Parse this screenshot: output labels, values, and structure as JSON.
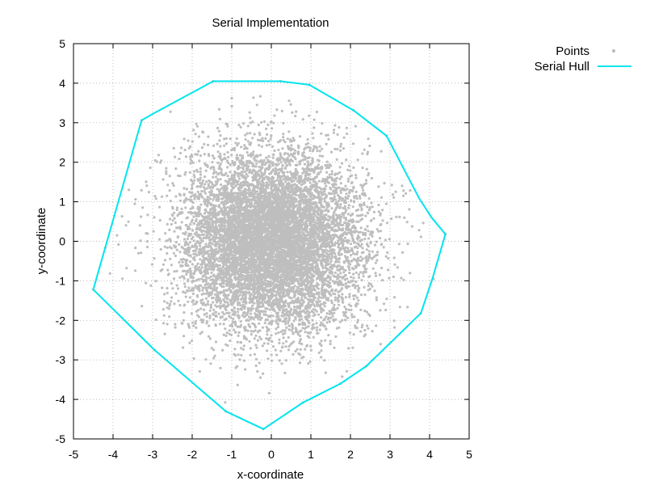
{
  "chart_data": {
    "type": "scatter",
    "title": "Serial Implementation",
    "xlabel": "x-coordinate",
    "ylabel": "y-coordinate",
    "xlim": [
      -5,
      5
    ],
    "ylim": [
      -5,
      5
    ],
    "xticks": [
      -5,
      -4,
      -3,
      -2,
      -1,
      0,
      1,
      2,
      3,
      4,
      5
    ],
    "yticks": [
      -5,
      -4,
      -3,
      -2,
      -1,
      0,
      1,
      2,
      3,
      4,
      5
    ],
    "grid": true,
    "legend_position": "top-right outside",
    "series": [
      {
        "name": "Points",
        "kind": "scatter",
        "color": "#bebebe",
        "distribution": "approximately standard normal in x and y, dense cloud radius about 2.5, outliers up to the hull",
        "samples": [
          [
            -3.28,
            3.06
          ],
          [
            -1.47,
            4.05
          ],
          [
            0.23,
            4.05
          ],
          [
            0.96,
            3.96
          ],
          [
            2.08,
            3.31
          ],
          [
            2.91,
            2.67
          ],
          [
            4.4,
            0.18
          ],
          [
            4.1,
            -0.95
          ],
          [
            3.78,
            -1.82
          ],
          [
            2.4,
            -3.16
          ],
          [
            1.75,
            -3.6
          ],
          [
            0.8,
            -4.08
          ],
          [
            -0.2,
            -4.75
          ],
          [
            -1.15,
            -4.3
          ],
          [
            -2.95,
            -2.75
          ],
          [
            -4.5,
            -1.22
          ],
          [
            -3.9,
            0.15
          ],
          [
            -3.6,
            1.3
          ]
        ]
      },
      {
        "name": "Serial Hull",
        "kind": "line",
        "color": "#00e5ee",
        "points": [
          [
            -3.28,
            3.06
          ],
          [
            -3.0,
            3.22
          ],
          [
            -1.47,
            4.05
          ],
          [
            0.23,
            4.05
          ],
          [
            0.96,
            3.96
          ],
          [
            2.08,
            3.31
          ],
          [
            2.91,
            2.67
          ],
          [
            3.74,
            1.08
          ],
          [
            4.05,
            0.6
          ],
          [
            4.4,
            0.18
          ],
          [
            4.08,
            -0.92
          ],
          [
            3.78,
            -1.82
          ],
          [
            2.4,
            -3.16
          ],
          [
            1.75,
            -3.6
          ],
          [
            0.8,
            -4.08
          ],
          [
            -0.2,
            -4.75
          ],
          [
            -1.15,
            -4.3
          ],
          [
            -2.95,
            -2.75
          ],
          [
            -4.5,
            -1.22
          ],
          [
            -3.28,
            3.06
          ]
        ]
      }
    ]
  }
}
